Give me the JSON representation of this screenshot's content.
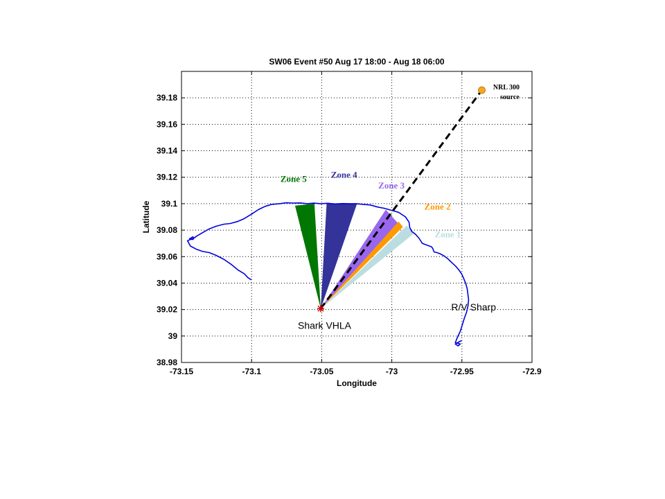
{
  "chart_data": {
    "type": "map",
    "title": "SW06 Event #50 Aug 17 18:00 - Aug 18 06:00",
    "xlabel": "Longitude",
    "ylabel": "Latitude",
    "xlim": [
      -73.15,
      -72.9
    ],
    "ylim": [
      38.98,
      39.2
    ],
    "grid": true,
    "xticks": [
      {
        "value": -73.15,
        "label": "-73.15"
      },
      {
        "value": -73.1,
        "label": "-73.1"
      },
      {
        "value": -73.05,
        "label": "-73.05"
      },
      {
        "value": -73.0,
        "label": "-73"
      },
      {
        "value": -72.95,
        "label": "-72.95"
      },
      {
        "value": -72.9,
        "label": "-72.9"
      }
    ],
    "yticks": [
      {
        "value": 38.98,
        "label": "38.98"
      },
      {
        "value": 39.0,
        "label": "39"
      },
      {
        "value": 39.02,
        "label": "39.02"
      },
      {
        "value": 39.04,
        "label": "39.04"
      },
      {
        "value": 39.06,
        "label": "39.06"
      },
      {
        "value": 39.08,
        "label": "39.08"
      },
      {
        "value": 39.1,
        "label": "39.1"
      },
      {
        "value": 39.12,
        "label": "39.12"
      },
      {
        "value": 39.14,
        "label": "39.14"
      },
      {
        "value": 39.16,
        "label": "39.16"
      },
      {
        "value": 39.18,
        "label": "39.18"
      }
    ],
    "zones": [
      {
        "label": "Zone 5",
        "color": "#007700",
        "polygon": [
          [
            -73.0507,
            39.0207
          ],
          [
            -73.069,
            39.0985
          ],
          [
            -73.0552,
            39.1
          ]
        ],
        "label_at": [
          -73.0794,
          39.1165
        ]
      },
      {
        "label": "Zone 4",
        "color": "#333399",
        "polygon": [
          [
            -73.0507,
            39.0207
          ],
          [
            -73.0465,
            39.1
          ],
          [
            -73.0248,
            39.1
          ]
        ],
        "label_at": [
          -73.0434,
          39.1195
        ]
      },
      {
        "label": "Zone 3",
        "color": "#9966ee",
        "polygon": [
          [
            -73.0507,
            39.0207
          ],
          [
            -73.0043,
            39.0955
          ],
          [
            -72.9958,
            39.0855
          ]
        ],
        "label_at": [
          -73.0096,
          39.1115
        ]
      },
      {
        "label": "Zone 2",
        "color": "#ff9900",
        "polygon": [
          [
            -73.0507,
            39.0207
          ],
          [
            -72.9952,
            39.0865
          ],
          [
            -72.992,
            39.0825
          ]
        ],
        "label_at": [
          -72.9768,
          39.0955
        ]
      },
      {
        "label": "Zone 1",
        "color": "#bbdde2",
        "polygon": [
          [
            -73.0507,
            39.0207
          ],
          [
            -72.9894,
            39.0835
          ],
          [
            -72.9842,
            39.0775
          ]
        ],
        "label_at": [
          -72.9694,
          39.0745
        ]
      }
    ],
    "receiver": {
      "label": "Shark VHLA",
      "point": [
        -73.0507,
        39.0207
      ],
      "label_at": [
        -73.067,
        39.0055
      ]
    },
    "source": {
      "label_line1": "NRL 300",
      "label_line2": "source",
      "point": [
        -72.9358,
        39.1858
      ],
      "color": "#f5a623",
      "label_at": [
        -72.9277,
        39.1865
      ]
    },
    "ship": {
      "label": "R/V Sharp",
      "label_at": [
        -72.9576,
        39.0192
      ]
    },
    "track": {
      "name": "R/V Sharp",
      "color": "#0000dd",
      "lon": [
        -73.1002,
        -73.1025,
        -73.1052,
        -73.1098,
        -73.1144,
        -73.1198,
        -73.1254,
        -73.1302,
        -73.1352,
        -73.1392,
        -73.1437,
        -73.1457,
        -73.1437,
        -73.1417,
        -73.1417,
        -73.1442,
        -73.1417,
        -73.1392,
        -73.1352,
        -73.1302,
        -73.1252,
        -73.1198,
        -73.1152,
        -73.1102,
        -73.1057,
        -73.1002,
        -73.0952,
        -73.0902,
        -73.0857,
        -73.0802,
        -73.0752,
        -73.0707,
        -73.0652,
        -73.0602,
        -73.0557,
        -73.0507,
        -73.0457,
        -73.0402,
        -73.0352,
        -73.0302,
        -73.0252,
        -73.0202,
        -73.0152,
        -73.0102,
        -73.0052,
        -73.0002,
        -72.9952,
        -72.9902,
        -72.9877,
        -72.9872,
        -72.9857,
        -72.9832,
        -72.9807,
        -72.9782,
        -72.9757,
        -72.9737,
        -72.9717,
        -72.9707,
        -72.9702,
        -72.9697,
        -72.9677,
        -72.9652,
        -72.9627,
        -72.9602,
        -72.9582,
        -72.9562,
        -72.9542,
        -72.9522,
        -72.9502,
        -72.9487,
        -72.9472,
        -72.9462,
        -72.9457,
        -72.9452,
        -72.9457,
        -72.9467,
        -72.9482,
        -72.9497,
        -72.9512,
        -72.9532,
        -72.9547,
        -72.9512,
        -72.9527,
        -72.9547,
        -72.9522,
        -72.9502
      ],
      "lat": [
        39.0425,
        39.044,
        39.047,
        39.05,
        39.054,
        39.058,
        39.061,
        39.063,
        39.064,
        39.0655,
        39.068,
        39.072,
        39.073,
        39.073,
        39.075,
        39.0735,
        39.0735,
        39.0755,
        39.078,
        39.081,
        39.083,
        39.0845,
        39.085,
        39.0865,
        39.0885,
        39.092,
        39.0955,
        39.098,
        39.0995,
        39.1,
        39.1007,
        39.1005,
        39.1006,
        39.1,
        39.1004,
        39.1,
        39.1003,
        39.0998,
        39.1001,
        39.1,
        39.1,
        39.0995,
        39.099,
        39.0975,
        39.0965,
        39.095,
        39.0935,
        39.09,
        39.086,
        39.082,
        39.079,
        39.077,
        39.074,
        39.07,
        39.069,
        39.0682,
        39.0675,
        39.066,
        39.0645,
        39.0635,
        39.063,
        39.062,
        39.0605,
        39.0585,
        39.0565,
        39.0545,
        39.0525,
        39.05,
        39.047,
        39.0435,
        39.0395,
        39.0355,
        39.0315,
        39.0275,
        39.0225,
        39.018,
        39.0135,
        39.0085,
        39.0035,
        38.999,
        38.995,
        38.994,
        38.9925,
        38.994,
        38.9955,
        38.9965
      ]
    }
  }
}
